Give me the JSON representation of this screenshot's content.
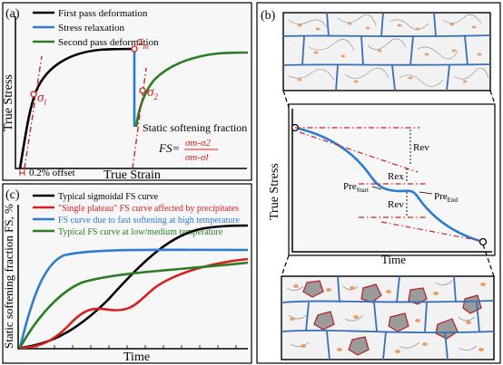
{
  "colors": {
    "black": "#000000",
    "blue": "#2b7bd6",
    "green": "#2a7d23",
    "red": "#d62020",
    "micro_bg": "#f2f2f2",
    "grain_boundary": "#3a6fb5",
    "dislocation": "#888888",
    "precipitate": "#e8a06a",
    "recrystallized_grain": "#9b9b9b"
  },
  "panel_a": {
    "label": "(a)",
    "legend": [
      "First pass deformation",
      "Stress relaxation",
      "Second pass deformation"
    ],
    "ylabel": "True Stress",
    "xlabel": "True Strain",
    "sigma_1": "σ",
    "sigma_1_sub": "l",
    "sigma_m": "σ",
    "sigma_m_sub": "m",
    "sigma_2": "σ",
    "sigma_2_sub": "2",
    "offset_label": "0.2% offset",
    "softening_title": "Static softening fraction",
    "fs_lhs": "FS=",
    "fs_num": "σm-σ2",
    "fs_den": "σm-σl"
  },
  "panel_b": {
    "label": "(b)",
    "ylabel": "True Stress",
    "xlabel": "Time",
    "rev_top": "Rev",
    "rex": "Rex",
    "rev_bottom": "Rev",
    "pre_start": "Pre",
    "pre_start_sub": "Start",
    "pre_end": "Pre",
    "pre_end_sub": "End"
  },
  "panel_c": {
    "label": "(c)",
    "legend": [
      "Typical sigmoidal FS curve",
      "\"Single plateau\" FS curve affected by precipitates",
      "FS curve due to fast softening at high temperature",
      "Typical FS curve at low/medium temperature"
    ],
    "ylabel": "Static softening fraction FS, %",
    "xlabel": "Time"
  }
}
